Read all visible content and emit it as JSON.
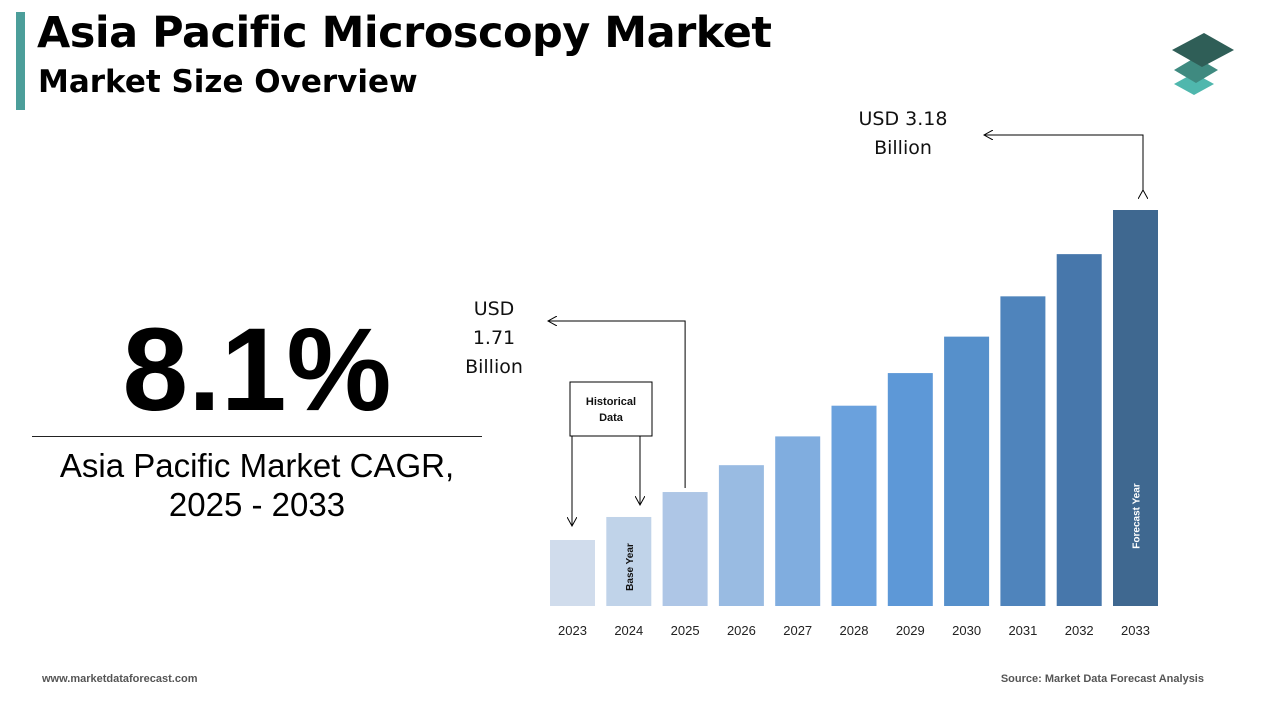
{
  "header": {
    "title": "Asia Pacific Microscopy Market",
    "subtitle": "Market Size Overview"
  },
  "colors": {
    "accent": "#4c9e9a",
    "logo_top": "#2f5e57",
    "logo_mid": "#3f8a80",
    "logo_bottom": "#4fb7ad",
    "bars": [
      "#d0dcec",
      "#c0d3e9",
      "#aec6e6",
      "#99bbe2",
      "#80addf",
      "#6aa1dd",
      "#5d98d7",
      "#5690cb",
      "#4f84bc",
      "#4777ab",
      "#3f6890"
    ]
  },
  "logo": {
    "icon": "stacked-layers-icon"
  },
  "kpi": {
    "value": "8.1%",
    "label_line1": "Asia Pacific Market CAGR,",
    "label_line2": "2025 - 2033"
  },
  "chart_data": {
    "type": "bar",
    "categories": [
      "2023",
      "2024",
      "2025",
      "2026",
      "2027",
      "2028",
      "2029",
      "2030",
      "2031",
      "2032",
      "2033"
    ],
    "values": [
      1.46,
      1.58,
      1.71,
      1.85,
      2.0,
      2.16,
      2.33,
      2.52,
      2.73,
      2.95,
      3.18
    ],
    "unit": "USD Billion",
    "bar_labels": {
      "2024": "Base Year",
      "2033": "Forecast Year"
    },
    "annotations": [
      {
        "lines": [
          "USD",
          "1.71",
          "Billion"
        ],
        "target": "2025"
      },
      {
        "lines": [
          "USD 3.18",
          "Billion"
        ],
        "target": "2033"
      }
    ],
    "callout": {
      "lines": [
        "Historical",
        "Data"
      ],
      "targets": [
        "2023",
        "2024"
      ]
    },
    "xlabel": "",
    "ylabel": "",
    "grid": false,
    "legend": "none"
  },
  "footer": {
    "website": "www.marketdataforecast.com",
    "source": "Source: Market Data Forecast Analysis"
  }
}
